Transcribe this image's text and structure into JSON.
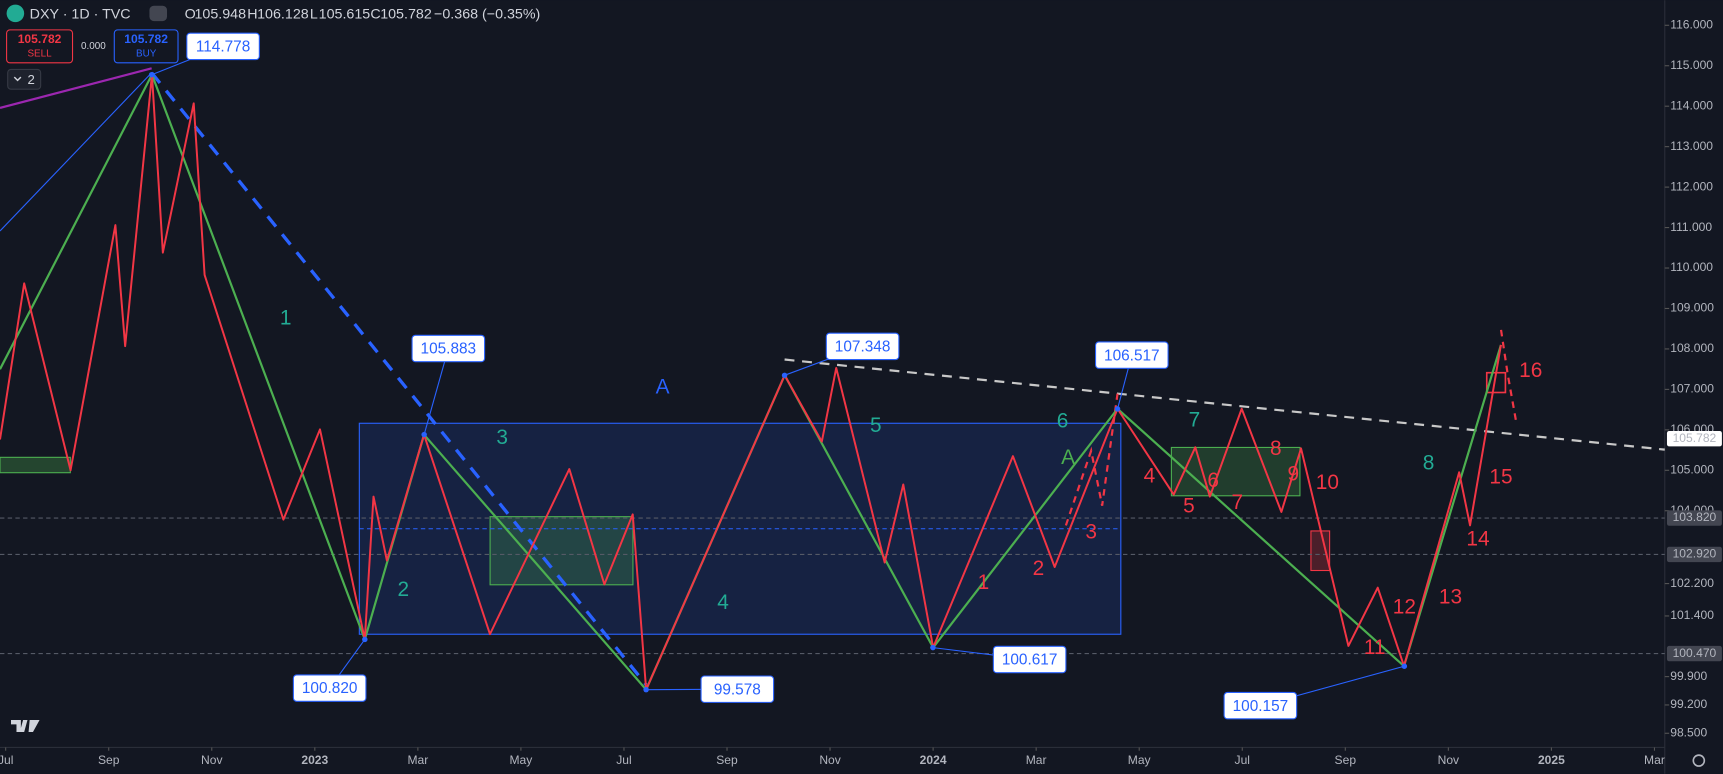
{
  "header": {
    "symbol": "DXY · 1D · TVC",
    "o_label": "O",
    "o": "105.948",
    "h_label": "H",
    "h": "106.128",
    "l_label": "L",
    "l": "105.615",
    "c_label": "C",
    "c": "105.782",
    "change": "−0.368 (−0.35%)",
    "sell_price": "105.782",
    "sell": "SELL",
    "spread": "0.000",
    "buy_price": "105.782",
    "buy": "BUY",
    "layers": "2"
  },
  "chart_data": {
    "type": "line",
    "xlim": [
      -0.11,
      32.2
    ],
    "xticks": [
      {
        "value": 0,
        "label": "Jul"
      },
      {
        "value": 2,
        "label": "Sep"
      },
      {
        "value": 4,
        "label": "Nov"
      },
      {
        "value": 6,
        "label": "2023"
      },
      {
        "value": 8,
        "label": "Mar"
      },
      {
        "value": 10,
        "label": "May"
      },
      {
        "value": 12,
        "label": "Jul"
      },
      {
        "value": 14,
        "label": "Sep"
      },
      {
        "value": 16,
        "label": "Nov"
      },
      {
        "value": 18,
        "label": "2024"
      },
      {
        "value": 20,
        "label": "Mar"
      },
      {
        "value": 22,
        "label": "May"
      },
      {
        "value": 24,
        "label": "Jul"
      },
      {
        "value": 26,
        "label": "Sep"
      },
      {
        "value": 28,
        "label": "Nov"
      },
      {
        "value": 30,
        "label": "2025"
      },
      {
        "value": 32,
        "label": "Mar"
      }
    ],
    "ylim": [
      98.15,
      116.62
    ],
    "yticks": [
      {
        "value": 116,
        "label": "116.000"
      },
      {
        "value": 115,
        "label": "115.000"
      },
      {
        "value": 114,
        "label": "114.000"
      },
      {
        "value": 113,
        "label": "113.000"
      },
      {
        "value": 112,
        "label": "112.000"
      },
      {
        "value": 111,
        "label": "111.000"
      },
      {
        "value": 110,
        "label": "110.000"
      },
      {
        "value": 109,
        "label": "109.000"
      },
      {
        "value": 108,
        "label": "108.000"
      },
      {
        "value": 107,
        "label": "107.000"
      },
      {
        "value": 106,
        "label": "106.000"
      },
      {
        "value": 105,
        "label": "105.000"
      },
      {
        "value": 104,
        "label": "104.000"
      },
      {
        "value": 102.2,
        "label": "102.200"
      },
      {
        "value": 101.4,
        "label": "101.400"
      },
      {
        "value": 99.9,
        "label": "99.900"
      },
      {
        "value": 99.2,
        "label": "99.200"
      },
      {
        "value": 98.5,
        "label": "98.500"
      }
    ],
    "series": [
      {
        "name": "wave",
        "color": "#4caf50",
        "x": [
          -0.11,
          2.84,
          6.97,
          8.12,
          12.43,
          15.12,
          18.0,
          21.58,
          27.14,
          29.02
        ],
        "values": [
          107.5,
          114.78,
          100.82,
          105.88,
          99.58,
          107.35,
          100.62,
          106.52,
          100.16,
          108.1
        ]
      },
      {
        "name": "path",
        "color": "#f23645",
        "x": [
          -0.11,
          0.36,
          1.26,
          2.13,
          2.32,
          2.84,
          3.05,
          3.65,
          3.86,
          5.39,
          6.1,
          6.97,
          7.14,
          7.4,
          8.12,
          9.4,
          10.94,
          11.62,
          12.17,
          12.43,
          15.12,
          15.84,
          16.12,
          17.06,
          17.42,
          18.0,
          19.55,
          20.36,
          21.58,
          22.67,
          23.09,
          23.37,
          23.99,
          24.76,
          25.14,
          26.06,
          26.63,
          27.14,
          28.21,
          28.42,
          29.02
        ],
        "values": [
          105.76,
          109.62,
          105.0,
          111.06,
          108.07,
          114.78,
          110.38,
          114.07,
          109.83,
          103.78,
          106.01,
          100.82,
          104.35,
          102.77,
          105.88,
          100.95,
          105.03,
          102.18,
          103.91,
          99.58,
          107.35,
          105.71,
          107.53,
          102.72,
          104.65,
          100.62,
          105.35,
          102.61,
          106.52,
          104.4,
          105.57,
          104.35,
          106.52,
          103.97,
          105.54,
          100.66,
          102.1,
          100.16,
          104.95,
          103.64,
          108.1
        ]
      }
    ],
    "pivots": [
      {
        "value": 114.778,
        "label": "114.778"
      },
      {
        "value": 105.883,
        "label": "105.883"
      },
      {
        "value": 107.348,
        "label": "107.348"
      },
      {
        "value": 106.517,
        "label": "106.517"
      },
      {
        "value": 100.82,
        "label": "100.820"
      },
      {
        "value": 99.578,
        "label": "99.578"
      },
      {
        "value": 100.617,
        "label": "100.617"
      },
      {
        "value": 100.157,
        "label": "100.157"
      }
    ],
    "price_lines": [
      {
        "value": 105.782,
        "label": "105.782"
      },
      {
        "value": 103.82,
        "label": "103.820"
      },
      {
        "value": 102.92,
        "label": "102.920"
      },
      {
        "value": 100.47,
        "label": "100.470"
      }
    ],
    "wave_labels": [
      {
        "text": "1",
        "color": "#22ab94"
      },
      {
        "text": "2",
        "color": "#22ab94"
      },
      {
        "text": "3",
        "color": "#22ab94"
      },
      {
        "text": "4",
        "color": "#22ab94"
      },
      {
        "text": "5",
        "color": "#22ab94"
      },
      {
        "text": "6",
        "color": "#22ab94"
      },
      {
        "text": "7",
        "color": "#22ab94"
      },
      {
        "text": "8",
        "color": "#22ab94"
      },
      {
        "text": "A",
        "color": "#2962ff"
      },
      {
        "text": "A",
        "color": "#4caf50"
      },
      {
        "text": "1",
        "color": "#f23645"
      },
      {
        "text": "2",
        "color": "#f23645"
      },
      {
        "text": "3",
        "color": "#f23645"
      },
      {
        "text": "4",
        "color": "#f23645"
      },
      {
        "text": "5",
        "color": "#f23645"
      },
      {
        "text": "6",
        "color": "#f23645"
      },
      {
        "text": "7",
        "color": "#f23645"
      },
      {
        "text": "8",
        "color": "#f23645"
      },
      {
        "text": "9",
        "color": "#f23645"
      },
      {
        "text": "10",
        "color": "#f23645"
      },
      {
        "text": "11",
        "color": "#f23645"
      },
      {
        "text": "12",
        "color": "#f23645"
      },
      {
        "text": "13",
        "color": "#f23645"
      },
      {
        "text": "14",
        "color": "#f23645"
      },
      {
        "text": "15",
        "color": "#f23645"
      },
      {
        "text": "16",
        "color": "#f23645"
      }
    ]
  }
}
